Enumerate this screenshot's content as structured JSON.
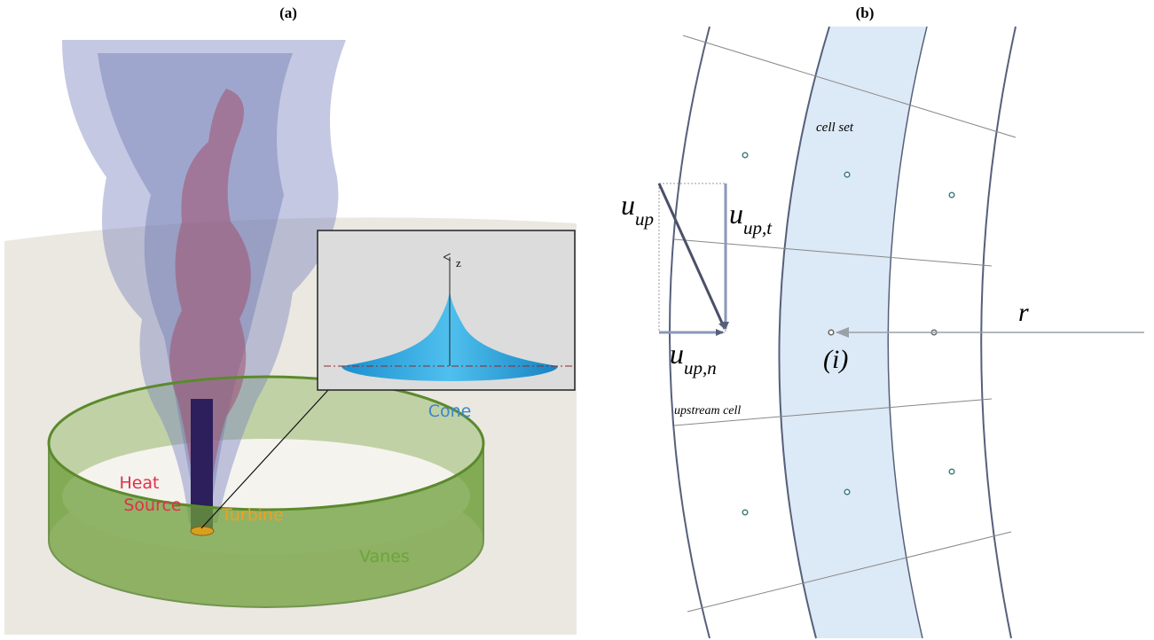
{
  "panel_a": {
    "label": "(a)",
    "inset": {
      "axis_label": "z",
      "caption": "Cone"
    },
    "labels": {
      "heat_source": [
        "Heat",
        "Source"
      ],
      "turbine": "Turbine",
      "vanes": "Vanes"
    }
  },
  "panel_b": {
    "label": "(b)",
    "cell_set": "cell set",
    "upstream_cell": "upstream cell",
    "index": "(i)",
    "radius": "r",
    "u_up": {
      "base": "u",
      "sub": "up"
    },
    "u_up_t": {
      "base": "u",
      "sub": "up,t"
    },
    "u_up_n": {
      "base": "u",
      "sub": "up,n"
    }
  }
}
